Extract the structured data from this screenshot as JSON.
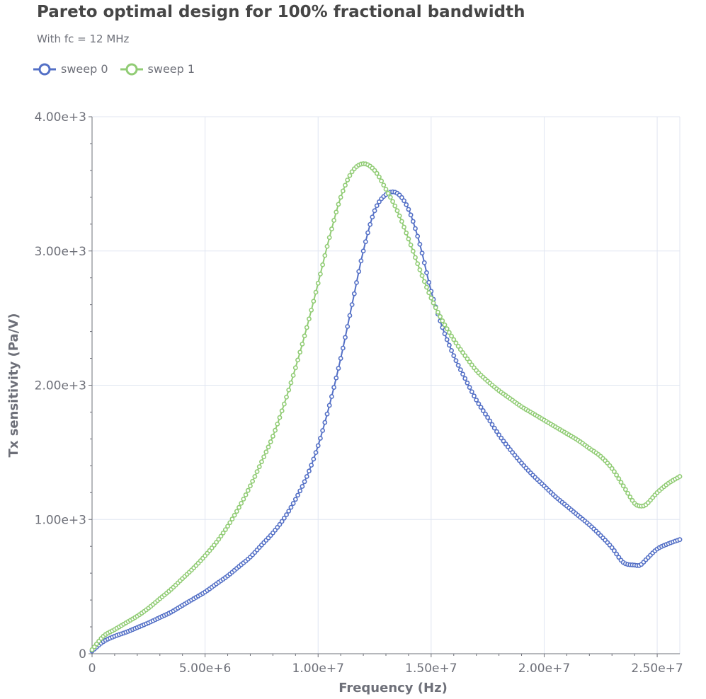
{
  "title": "Pareto optimal design for 100% fractional bandwidth",
  "subtitle": "With fc = 12 MHz",
  "colors": {
    "series": [
      "#5470c6",
      "#91cc75"
    ],
    "axis": "#6e7079",
    "grid": "#e0e6f1",
    "text": "#464646"
  },
  "chart_data": {
    "type": "line",
    "title": "Pareto optimal design for 100% fractional bandwidth",
    "subtitle": "With fc = 12 MHz",
    "xlabel": "Frequency (Hz)",
    "ylabel": "Tx sensitivity (Pa/V)",
    "xlim": [
      0,
      26000000
    ],
    "ylim": [
      0,
      4000
    ],
    "x_ticks": [
      0,
      5000000,
      10000000,
      15000000,
      20000000,
      25000000
    ],
    "x_tick_labels": [
      "0",
      "5.00e+6",
      "1.00e+7",
      "1.50e+7",
      "2.00e+7",
      "2.50e+7"
    ],
    "y_ticks": [
      0,
      1000,
      2000,
      3000,
      4000
    ],
    "y_tick_labels": [
      "0",
      "1.00e+3",
      "2.00e+3",
      "3.00e+3",
      "4.00e+3"
    ],
    "grid": true,
    "legend_position": "top-left",
    "x": [
      0,
      500000,
      1000000,
      1500000,
      2000000,
      2500000,
      3000000,
      3500000,
      4000000,
      4500000,
      5000000,
      5500000,
      6000000,
      6500000,
      7000000,
      7500000,
      8000000,
      8500000,
      9000000,
      9500000,
      10000000,
      10500000,
      11000000,
      11500000,
      12000000,
      12500000,
      13000000,
      13500000,
      14000000,
      14500000,
      15000000,
      15500000,
      16000000,
      16500000,
      17000000,
      17500000,
      18000000,
      18500000,
      19000000,
      19500000,
      20000000,
      20500000,
      21000000,
      21500000,
      22000000,
      22500000,
      23000000,
      23500000,
      24000000,
      24250000,
      24500000,
      25000000,
      25500000,
      26000000
    ],
    "series": [
      {
        "name": "sweep 0",
        "values": [
          20,
          90,
          130,
          160,
          195,
          230,
          270,
          310,
          360,
          410,
          460,
          520,
          580,
          650,
          720,
          810,
          900,
          1010,
          1150,
          1320,
          1550,
          1850,
          2200,
          2600,
          3000,
          3300,
          3420,
          3430,
          3310,
          3050,
          2700,
          2430,
          2220,
          2050,
          1890,
          1760,
          1630,
          1520,
          1420,
          1330,
          1250,
          1170,
          1100,
          1030,
          960,
          880,
          790,
          680,
          660,
          660,
          700,
          780,
          820,
          850
        ]
      },
      {
        "name": "sweep 1",
        "values": [
          30,
          130,
          180,
          230,
          280,
          340,
          410,
          480,
          560,
          640,
          730,
          830,
          950,
          1090,
          1250,
          1430,
          1620,
          1860,
          2130,
          2430,
          2760,
          3100,
          3400,
          3590,
          3650,
          3600,
          3460,
          3300,
          3090,
          2860,
          2650,
          2480,
          2340,
          2220,
          2110,
          2030,
          1960,
          1900,
          1840,
          1790,
          1740,
          1690,
          1640,
          1590,
          1530,
          1470,
          1380,
          1250,
          1120,
          1100,
          1110,
          1200,
          1270,
          1320
        ]
      }
    ]
  }
}
